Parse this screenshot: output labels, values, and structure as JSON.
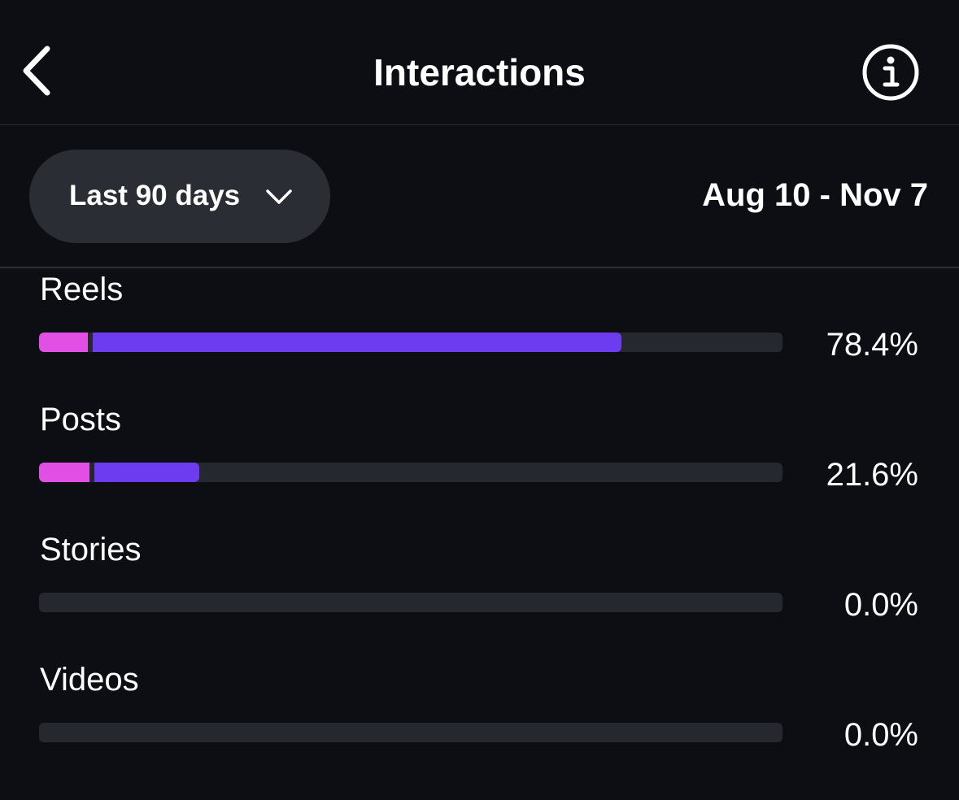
{
  "header": {
    "title": "Interactions",
    "back_icon": "chevron-left-icon",
    "info_icon": "info-circle-icon"
  },
  "filter": {
    "range_label": "Last 90 days",
    "range_icon": "chevron-down-icon",
    "date_range": "Aug 10 - Nov 7"
  },
  "colors": {
    "background": "#0c0e13",
    "track": "#25282e",
    "followers_segment": "#e14fe4",
    "non_followers_segment": "#6d3cf0"
  },
  "rows": [
    {
      "label": "Reels",
      "percent_text": "78.4%",
      "percent": 78.4,
      "pink_share": 0.066,
      "purple_share": 0.718
    },
    {
      "label": "Posts",
      "percent_text": "21.6%",
      "percent": 21.6,
      "pink_share": 0.068,
      "purple_share": 0.148
    },
    {
      "label": "Stories",
      "percent_text": "0.0%",
      "percent": 0.0,
      "pink_share": 0,
      "purple_share": 0
    },
    {
      "label": "Videos",
      "percent_text": "0.0%",
      "percent": 0.0,
      "pink_share": 0,
      "purple_share": 0
    }
  ]
}
